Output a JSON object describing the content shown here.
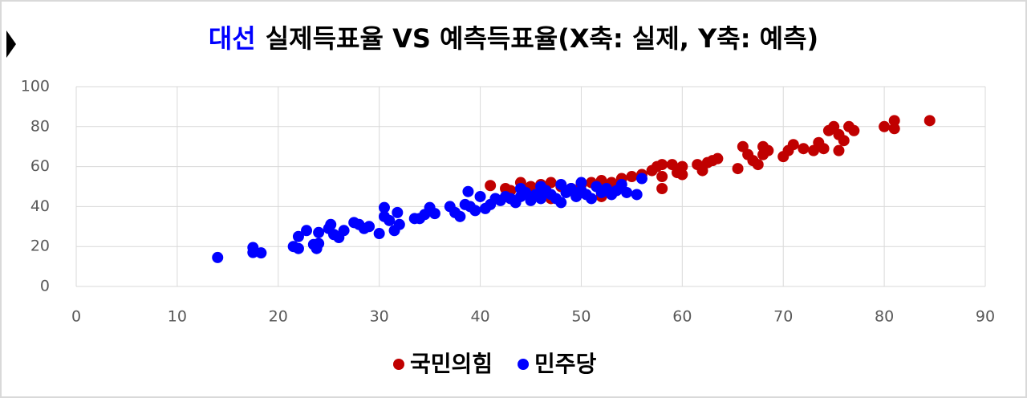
{
  "chart_data": {
    "type": "scatter",
    "title_highlight": "대선",
    "title": "실제득표율 VS 예측득표율(X축: 실제, Y축: 예측)",
    "xlim": [
      0,
      90
    ],
    "xticks": [
      0,
      10,
      20,
      30,
      40,
      50,
      60,
      70,
      80,
      90
    ],
    "ylim": [
      0,
      100
    ],
    "yticks": [
      0,
      20,
      40,
      60,
      80,
      100
    ],
    "grid": true,
    "legend": "bottom",
    "series": [
      {
        "name": "국민의힘",
        "color": "#c00000",
        "x": [
          41,
          42.5,
          43,
          44,
          45,
          46,
          47,
          48,
          49,
          50,
          51,
          52,
          53,
          54,
          55,
          56,
          57,
          57.5,
          58,
          58,
          58,
          59,
          59.5,
          60,
          60,
          61.5,
          62,
          62.5,
          63,
          63.5,
          65.5,
          66,
          66.5,
          67,
          67.5,
          68,
          68,
          68.5,
          70,
          70.5,
          71,
          72,
          73,
          73.5,
          74,
          74.5,
          75,
          75.5,
          75.5,
          76,
          76.5,
          77,
          80,
          81,
          81,
          84.5,
          52,
          50,
          45,
          47,
          43
        ],
        "values": [
          50.5,
          49,
          48,
          52,
          50,
          51,
          52,
          50,
          49,
          51,
          52,
          53,
          52,
          54,
          55,
          56,
          58,
          60,
          61,
          55,
          49,
          61,
          57,
          60,
          56,
          61,
          58,
          62,
          63,
          64,
          59,
          70,
          66,
          63,
          61,
          70,
          66,
          68,
          65,
          68,
          71,
          69,
          68,
          72,
          69,
          78,
          80,
          76,
          68,
          73,
          80,
          78,
          80,
          83,
          79,
          83,
          45,
          47,
          45,
          44,
          44
        ]
      },
      {
        "name": "민주당",
        "color": "#0000ff",
        "x": [
          14,
          17.5,
          17.5,
          18.3,
          21.5,
          22,
          22,
          22.8,
          23.5,
          23.8,
          24,
          24,
          25,
          25.2,
          25.5,
          26,
          26.5,
          27.5,
          28,
          28.5,
          29,
          30,
          30.5,
          30.5,
          31,
          31.5,
          31.8,
          32,
          33.5,
          34,
          34.5,
          35,
          35.5,
          37,
          37.5,
          38,
          38.5,
          38.8,
          39,
          39.5,
          40,
          40.5,
          41,
          41.5,
          42,
          42.5,
          43,
          43.5,
          44,
          44.5,
          45,
          45.5,
          46,
          46.5,
          47,
          47.5,
          48,
          48.5,
          49,
          49.5,
          50,
          50.5,
          51,
          51.5,
          52,
          52.5,
          53,
          53.5,
          54,
          54.5,
          55.5,
          56,
          44,
          46,
          48,
          50
        ],
        "values": [
          14.5,
          17,
          19.5,
          16.8,
          20,
          19,
          25,
          28,
          21,
          19,
          21.5,
          27,
          29,
          31,
          26,
          24.5,
          28,
          32,
          31,
          29,
          30,
          26.5,
          35,
          39.5,
          33,
          28,
          37,
          31,
          34,
          34,
          36,
          39.5,
          36.5,
          40,
          37,
          35,
          41,
          47.5,
          40,
          38,
          45,
          39,
          41,
          44,
          43,
          45,
          44,
          42,
          45,
          47,
          43,
          46,
          44,
          48,
          46,
          44,
          42,
          47,
          49,
          45,
          48,
          46,
          44,
          50,
          47,
          49,
          46,
          48,
          51,
          47,
          46,
          54,
          49,
          50,
          51,
          52
        ]
      }
    ]
  }
}
